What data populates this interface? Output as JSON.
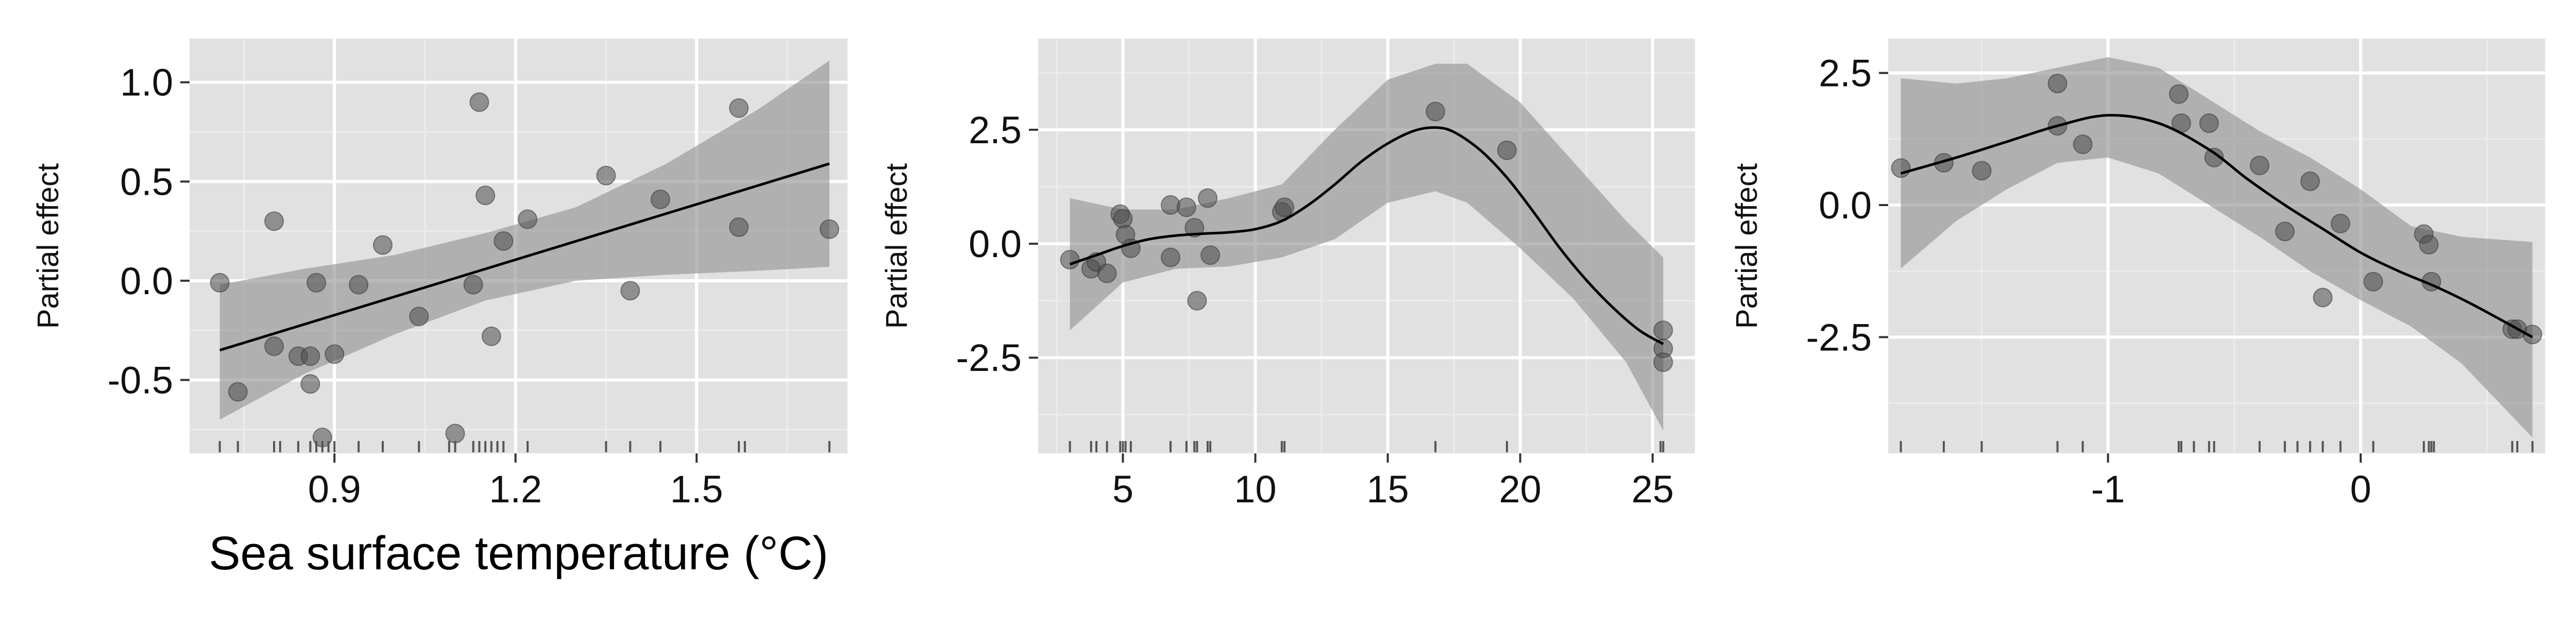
{
  "chart_data": [
    {
      "type": "scatter",
      "title": "",
      "xlabel": "Sea surface temperature (°C)",
      "ylabel": "Partial effect",
      "xlim": [
        0.66,
        1.75
      ],
      "ylim": [
        -0.87,
        1.22
      ],
      "xticks": [
        0.9,
        1.2,
        1.5
      ],
      "xtick_labels": [
        "0.9",
        "1.2",
        "1.5"
      ],
      "yticks": [
        -0.5,
        0.0,
        0.5,
        1.0
      ],
      "ytick_labels": [
        "-0.5",
        "0.0",
        "0.5",
        "1.0"
      ],
      "grid": true,
      "fit": {
        "x": [
          0.71,
          1.72
        ],
        "y": [
          -0.35,
          0.59
        ]
      },
      "band": {
        "x": [
          0.71,
          0.85,
          1.0,
          1.15,
          1.3,
          1.45,
          1.6,
          1.72
        ],
        "lower": [
          -0.7,
          -0.47,
          -0.27,
          -0.1,
          0.0,
          0.03,
          0.05,
          0.07
        ],
        "upper": [
          -0.02,
          0.06,
          0.13,
          0.24,
          0.37,
          0.59,
          0.86,
          1.11
        ]
      },
      "points": [
        {
          "x": 0.71,
          "y": -0.01
        },
        {
          "x": 0.74,
          "y": -0.56
        },
        {
          "x": 0.8,
          "y": 0.3
        },
        {
          "x": 0.8,
          "y": -0.33
        },
        {
          "x": 0.84,
          "y": -0.38
        },
        {
          "x": 0.86,
          "y": -0.38
        },
        {
          "x": 0.86,
          "y": -0.52
        },
        {
          "x": 0.87,
          "y": -0.01
        },
        {
          "x": 0.88,
          "y": -0.79
        },
        {
          "x": 0.9,
          "y": -0.37
        },
        {
          "x": 0.94,
          "y": -0.02
        },
        {
          "x": 0.98,
          "y": 0.18
        },
        {
          "x": 1.04,
          "y": -0.18
        },
        {
          "x": 1.1,
          "y": -0.77
        },
        {
          "x": 1.13,
          "y": -0.02
        },
        {
          "x": 1.14,
          "y": 0.9
        },
        {
          "x": 1.15,
          "y": 0.43
        },
        {
          "x": 1.16,
          "y": -0.28
        },
        {
          "x": 1.18,
          "y": 0.2
        },
        {
          "x": 1.22,
          "y": 0.31
        },
        {
          "x": 1.35,
          "y": 0.53
        },
        {
          "x": 1.39,
          "y": -0.05
        },
        {
          "x": 1.44,
          "y": 0.41
        },
        {
          "x": 1.57,
          "y": 0.87
        },
        {
          "x": 1.57,
          "y": 0.27
        },
        {
          "x": 1.72,
          "y": 0.26
        }
      ],
      "rug": [
        0.71,
        0.74,
        0.8,
        0.81,
        0.84,
        0.86,
        0.87,
        0.88,
        0.89,
        0.9,
        0.94,
        0.98,
        1.04,
        1.09,
        1.1,
        1.13,
        1.14,
        1.15,
        1.16,
        1.17,
        1.18,
        1.22,
        1.35,
        1.39,
        1.44,
        1.57,
        1.58,
        1.72
      ]
    },
    {
      "type": "scatter",
      "title": "",
      "xlabel": "",
      "ylabel": "Partial effect",
      "xlim": [
        1.8,
        26.6
      ],
      "ylim": [
        -4.6,
        4.5
      ],
      "xticks": [
        5,
        10,
        15,
        20,
        25
      ],
      "xtick_labels": [
        "5",
        "10",
        "15",
        "20",
        "25"
      ],
      "yticks": [
        -2.5,
        0.0,
        2.5
      ],
      "ytick_labels": [
        "-2.5",
        "0.0",
        "2.5"
      ],
      "grid": true,
      "fit": {
        "x": [
          3.0,
          4.0,
          5.0,
          6.0,
          7.0,
          8.0,
          9.0,
          10.0,
          11.0,
          12.0,
          13.0,
          14.0,
          15.0,
          16.0,
          16.8,
          17.5,
          18.5,
          19.5,
          20.5,
          21.5,
          22.5,
          23.5,
          24.5,
          25.4
        ],
        "y": [
          -0.45,
          -0.25,
          -0.05,
          0.1,
          0.18,
          0.22,
          0.25,
          0.32,
          0.5,
          0.85,
          1.3,
          1.8,
          2.2,
          2.48,
          2.55,
          2.45,
          2.05,
          1.45,
          0.7,
          -0.1,
          -0.8,
          -1.4,
          -1.9,
          -2.2
        ]
      },
      "band": {
        "x": [
          3.0,
          5.0,
          7.0,
          9.0,
          11.0,
          13.0,
          15.0,
          16.8,
          18.0,
          20.0,
          22.0,
          24.0,
          25.4
        ],
        "lower": [
          -1.9,
          -0.85,
          -0.55,
          -0.5,
          -0.3,
          0.1,
          0.9,
          1.15,
          0.9,
          -0.1,
          -1.2,
          -2.6,
          -4.1
        ],
        "upper": [
          1.0,
          0.75,
          0.75,
          1.0,
          1.3,
          2.5,
          3.6,
          3.95,
          3.95,
          3.1,
          1.8,
          0.5,
          -0.3
        ]
      },
      "points": [
        {
          "x": 3.0,
          "y": -0.35
        },
        {
          "x": 3.8,
          "y": -0.55
        },
        {
          "x": 4.0,
          "y": -0.4
        },
        {
          "x": 4.4,
          "y": -0.65
        },
        {
          "x": 4.9,
          "y": 0.65
        },
        {
          "x": 5.0,
          "y": 0.55
        },
        {
          "x": 5.1,
          "y": 0.2
        },
        {
          "x": 5.3,
          "y": -0.1
        },
        {
          "x": 6.8,
          "y": 0.85
        },
        {
          "x": 6.8,
          "y": -0.3
        },
        {
          "x": 7.4,
          "y": 0.8
        },
        {
          "x": 7.7,
          "y": 0.35
        },
        {
          "x": 7.8,
          "y": -1.25
        },
        {
          "x": 8.2,
          "y": 1.0
        },
        {
          "x": 8.3,
          "y": -0.25
        },
        {
          "x": 11.0,
          "y": 0.7
        },
        {
          "x": 11.1,
          "y": 0.8
        },
        {
          "x": 16.8,
          "y": 2.9
        },
        {
          "x": 19.5,
          "y": 2.05
        },
        {
          "x": 25.4,
          "y": -1.9
        },
        {
          "x": 25.4,
          "y": -2.3
        },
        {
          "x": 25.4,
          "y": -2.6
        }
      ],
      "rug": [
        3.0,
        3.8,
        4.0,
        4.4,
        4.9,
        5.0,
        5.1,
        5.3,
        6.8,
        7.4,
        7.7,
        7.8,
        8.2,
        8.3,
        11.0,
        11.1,
        16.8,
        19.5,
        25.3,
        25.4
      ]
    },
    {
      "type": "scatter",
      "title": "",
      "xlabel": "",
      "ylabel": "Partial effect",
      "xlim": [
        -1.87,
        0.73
      ],
      "ylim": [
        -4.7,
        3.15
      ],
      "xticks": [
        -1,
        0
      ],
      "xtick_labels": [
        "-1",
        "0"
      ],
      "yticks": [
        -2.5,
        0.0,
        2.5
      ],
      "ytick_labels": [
        "-2.5",
        "0.0",
        "2.5"
      ],
      "grid": true,
      "fit": {
        "x": [
          -1.82,
          -1.6,
          -1.4,
          -1.2,
          -1.0,
          -0.8,
          -0.6,
          -0.45,
          -0.3,
          -0.15,
          0.0,
          0.15,
          0.3,
          0.45,
          0.68
        ],
        "y": [
          0.6,
          0.9,
          1.2,
          1.5,
          1.7,
          1.55,
          1.05,
          0.5,
          0.0,
          -0.45,
          -0.9,
          -1.25,
          -1.55,
          -1.9,
          -2.5
        ]
      },
      "band": {
        "x": [
          -1.82,
          -1.6,
          -1.4,
          -1.2,
          -1.0,
          -0.8,
          -0.6,
          -0.4,
          -0.2,
          0.0,
          0.2,
          0.4,
          0.68
        ],
        "lower": [
          -1.2,
          -0.3,
          0.3,
          0.8,
          0.9,
          0.6,
          0.0,
          -0.6,
          -1.25,
          -1.8,
          -2.3,
          -3.0,
          -4.4
        ],
        "upper": [
          2.4,
          2.3,
          2.4,
          2.6,
          2.8,
          2.6,
          2.0,
          1.4,
          0.9,
          0.3,
          -0.4,
          -0.6,
          -0.7
        ]
      },
      "points": [
        {
          "x": -1.82,
          "y": 0.7
        },
        {
          "x": -1.65,
          "y": 0.8
        },
        {
          "x": -1.5,
          "y": 0.65
        },
        {
          "x": -1.2,
          "y": 2.3
        },
        {
          "x": -1.2,
          "y": 1.5
        },
        {
          "x": -1.1,
          "y": 1.15
        },
        {
          "x": -0.72,
          "y": 2.1
        },
        {
          "x": -0.71,
          "y": 1.55
        },
        {
          "x": -0.6,
          "y": 1.55
        },
        {
          "x": -0.58,
          "y": 0.9
        },
        {
          "x": -0.4,
          "y": 0.75
        },
        {
          "x": -0.3,
          "y": -0.5
        },
        {
          "x": -0.2,
          "y": 0.45
        },
        {
          "x": -0.15,
          "y": -1.75
        },
        {
          "x": -0.08,
          "y": -0.35
        },
        {
          "x": 0.05,
          "y": -1.45
        },
        {
          "x": 0.25,
          "y": -0.55
        },
        {
          "x": 0.27,
          "y": -0.75
        },
        {
          "x": 0.28,
          "y": -1.45
        },
        {
          "x": 0.6,
          "y": -2.35
        },
        {
          "x": 0.62,
          "y": -2.35
        },
        {
          "x": 0.68,
          "y": -2.45
        }
      ],
      "rug": [
        -1.82,
        -1.65,
        -1.5,
        -1.2,
        -1.1,
        -0.72,
        -0.71,
        -0.66,
        -0.6,
        -0.58,
        -0.4,
        -0.3,
        -0.25,
        -0.2,
        -0.15,
        -0.08,
        0.05,
        0.25,
        0.27,
        0.28,
        0.29,
        0.6,
        0.62,
        0.68
      ]
    }
  ]
}
